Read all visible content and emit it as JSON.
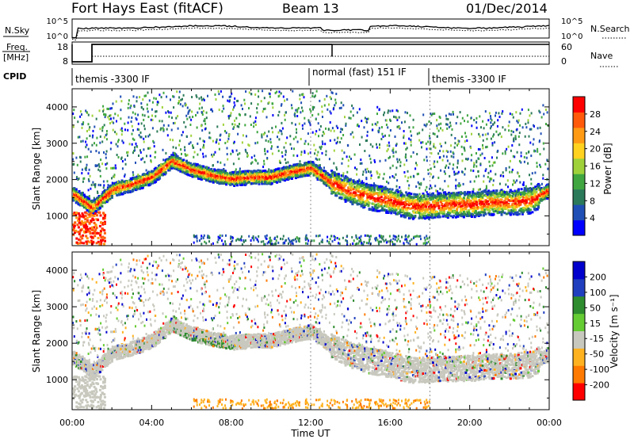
{
  "header": {
    "station": "Fort Hays East (fitACF)",
    "beam": "Beam 13",
    "date": "01/Dec/2014"
  },
  "top_panels": {
    "nsky_label": "N.Sky",
    "nsearch_label": "N.Search",
    "freq_label_1": "Freq.",
    "freq_label_2": "[MHz]",
    "nave_label": "Nave",
    "cpid_label": "CPID",
    "nsky_ticks": [
      "10^5",
      "10^0"
    ],
    "nsearch_ticks": [
      "10^5",
      "10^0"
    ],
    "freq_ticks": [
      "18",
      "8"
    ],
    "nave_ticks": [
      "60",
      "0"
    ],
    "cpid_segments": [
      {
        "label": "themis -3300 IF",
        "start_hour": 0
      },
      {
        "label": "normal (fast) 151 IF",
        "start_hour": 12
      },
      {
        "label": "themis -3300 IF",
        "start_hour": 18
      }
    ]
  },
  "colors": {
    "power": [
      "#0000ff",
      "#1f4fb4",
      "#2b7a5a",
      "#3fa640",
      "#9fd23a",
      "#ffd21f",
      "#ff9a14",
      "#ff5a0a",
      "#ff0000"
    ],
    "velocity": [
      "#ff0000",
      "#ff7a00",
      "#ffb21f",
      "#c8c8be",
      "#66cc33",
      "#2e8b2e",
      "#1f3fbf",
      "#0000cc"
    ]
  },
  "chart_data": [
    {
      "type": "heatmap",
      "name": "power",
      "ylabel": "Slant Range [km]",
      "yticks": [
        "1000",
        "2000",
        "3000",
        "4000"
      ],
      "ylim": [
        180,
        4500
      ],
      "xlim": [
        0,
        24
      ],
      "colorbar_label": "Power [dB]",
      "colorbar_ticks": [
        "4",
        "8",
        "12",
        "16",
        "20",
        "24",
        "28"
      ],
      "colorbar_range": [
        0,
        30
      ],
      "scatter_bands": [
        {
          "x": [
            0,
            1,
            2,
            3,
            4,
            5,
            6,
            7,
            8,
            9,
            10,
            11,
            12,
            13,
            14,
            15,
            16,
            17,
            18,
            19,
            20,
            21,
            22,
            23,
            24
          ],
          "y": [
            1600,
            1200,
            1700,
            1850,
            2050,
            2500,
            2250,
            2100,
            2000,
            2050,
            2050,
            2200,
            2300,
            1900,
            1650,
            1500,
            1400,
            1250,
            1250,
            1300,
            1300,
            1350,
            1350,
            1400,
            1700
          ]
        }
      ]
    },
    {
      "type": "heatmap",
      "name": "velocity",
      "ylabel": "Slant Range [km]",
      "yticks": [
        "1000",
        "2000",
        "3000",
        "4000"
      ],
      "ylim": [
        180,
        4500
      ],
      "xlim": [
        0,
        24
      ],
      "xlabel": "Time UT",
      "xticks": [
        "00:00",
        "04:00",
        "08:00",
        "12:00",
        "16:00",
        "20:00",
        "00:00"
      ],
      "colorbar_label": "Velocity [m s⁻¹]",
      "colorbar_ticks": [
        "-200",
        "-100",
        "-50",
        "-15",
        "15",
        "50",
        "100",
        "200"
      ],
      "colorbar_range": [
        -250,
        250
      ]
    }
  ]
}
